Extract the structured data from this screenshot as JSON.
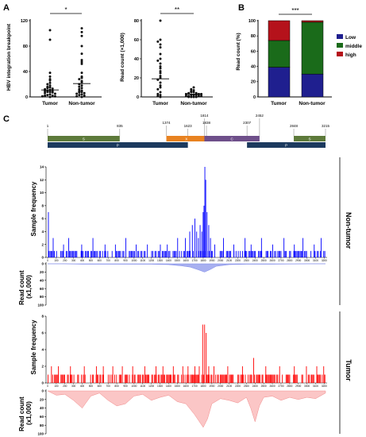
{
  "panels": {
    "a": "A",
    "b": "B",
    "c": "C"
  },
  "chart_data": [
    {
      "type": "scatter",
      "panel": "A",
      "ylabel": "HBV integration breakpoint",
      "ylim": [
        0,
        120
      ],
      "yticks": [
        "0",
        "40",
        "80",
        "120"
      ],
      "categories": [
        "Tumor",
        "Non-tumor"
      ],
      "significance": "*",
      "means": [
        11,
        21
      ],
      "groups": [
        {
          "name": "Tumor",
          "values": [
            105,
            90,
            38,
            32,
            28,
            26,
            22,
            20,
            18,
            16,
            15,
            14,
            13,
            12,
            11,
            10,
            9,
            9,
            8,
            8,
            7,
            6,
            5,
            4,
            3,
            2,
            2,
            1,
            1,
            0
          ]
        },
        {
          "name": "Non-tumor",
          "values": [
            108,
            102,
            96,
            80,
            68,
            58,
            55,
            52,
            38,
            32,
            30,
            28,
            25,
            23,
            20,
            18,
            16,
            14,
            12,
            10,
            9,
            8,
            7,
            6,
            5,
            4,
            3,
            2,
            1,
            0
          ]
        }
      ]
    },
    {
      "type": "scatter",
      "panel": "A",
      "ylabel": "Read count (×1,000)",
      "ylim": [
        0,
        80
      ],
      "yticks": [
        "0",
        "20",
        "40",
        "60",
        "80"
      ],
      "categories": [
        "Tumor",
        "Non-tumor"
      ],
      "significance": "**",
      "means": [
        19,
        3
      ],
      "groups": [
        {
          "name": "Tumor",
          "values": [
            80,
            60,
            58,
            55,
            52,
            45,
            40,
            38,
            35,
            32,
            30,
            27,
            25,
            22,
            20,
            18,
            15,
            12,
            10,
            8,
            5,
            3,
            2,
            1,
            0
          ]
        },
        {
          "name": "Non-tumor",
          "values": [
            10,
            8,
            7,
            6,
            5,
            5,
            4,
            4,
            3,
            3,
            3,
            2,
            2,
            2,
            1,
            1,
            1,
            1,
            0,
            0,
            0,
            0
          ]
        }
      ]
    },
    {
      "type": "bar",
      "panel": "B",
      "stacked": true,
      "ylabel": "Read count (%)",
      "ylim": [
        0,
        100
      ],
      "yticks": [
        "0",
        "20",
        "40",
        "60",
        "80",
        "100"
      ],
      "categories": [
        "Tumor",
        "Non-tumor"
      ],
      "significance": "***",
      "legend_position": "right",
      "series": [
        {
          "name": "Low",
          "color": "#1f1f8f",
          "values": [
            39,
            30
          ]
        },
        {
          "name": "middle",
          "color": "#1a6b1a",
          "values": [
            35,
            68
          ]
        },
        {
          "name": "high",
          "color": "#b5121b",
          "values": [
            26,
            2
          ]
        }
      ]
    },
    {
      "type": "genome-map",
      "panel": "C",
      "positions": [
        "1",
        "835",
        "1374",
        "1623",
        "1814",
        "1838",
        "2307",
        "2452",
        "2848",
        "3215"
      ],
      "genes": [
        {
          "label": "S",
          "start": 1,
          "end": 835,
          "color": "#5d7a3a",
          "row": 0
        },
        {
          "label": "X",
          "start": 1374,
          "end": 1838,
          "color": "#e88220",
          "row": 0
        },
        {
          "label": "C",
          "start": 1814,
          "end": 2452,
          "color": "#6e4f8a",
          "row": 0
        },
        {
          "label": "S",
          "start": 2848,
          "end": 3215,
          "color": "#5d7a3a",
          "row": 0
        },
        {
          "label": "P",
          "start": 1,
          "end": 1623,
          "color": "#1c3a5e",
          "row": 1
        },
        {
          "label": "P",
          "start": 2307,
          "end": 3215,
          "color": "#1c3a5e",
          "row": 1
        }
      ]
    },
    {
      "type": "bar",
      "panel": "C",
      "group": "Non-tumor",
      "ylabel": "Sample frequency",
      "ylim": [
        0,
        14
      ],
      "yticks": [
        "0",
        "2",
        "4",
        "6",
        "8",
        "10",
        "12",
        "14"
      ],
      "xlim": [
        0,
        3215
      ],
      "xticks": [
        "0",
        "100",
        "200",
        "300",
        "400",
        "500",
        "600",
        "700",
        "800",
        "900",
        "1000",
        "1100",
        "1200",
        "1300",
        "1400",
        "1500",
        "1600",
        "1700",
        "1800",
        "1900",
        "2000",
        "2100",
        "2200",
        "2300",
        "2400",
        "2500",
        "2600",
        "2700",
        "2800",
        "2900",
        "3000",
        "3100",
        "3200"
      ],
      "color": "#0000ff",
      "baseline": 1,
      "peaks": [
        [
          5,
          7
        ],
        [
          60,
          3
        ],
        [
          180,
          2
        ],
        [
          240,
          3
        ],
        [
          390,
          2
        ],
        [
          520,
          3
        ],
        [
          660,
          2
        ],
        [
          780,
          2
        ],
        [
          900,
          3
        ],
        [
          1020,
          2
        ],
        [
          1150,
          2
        ],
        [
          1300,
          2
        ],
        [
          1380,
          2
        ],
        [
          1500,
          3
        ],
        [
          1590,
          3
        ],
        [
          1640,
          4
        ],
        [
          1670,
          5
        ],
        [
          1700,
          6
        ],
        [
          1720,
          4
        ],
        [
          1740,
          3
        ],
        [
          1760,
          5
        ],
        [
          1780,
          4
        ],
        [
          1795,
          7
        ],
        [
          1805,
          8
        ],
        [
          1815,
          14
        ],
        [
          1825,
          12
        ],
        [
          1840,
          7
        ],
        [
          1860,
          5
        ],
        [
          1880,
          3
        ],
        [
          1930,
          2
        ],
        [
          2030,
          3
        ],
        [
          2150,
          2
        ],
        [
          2280,
          3
        ],
        [
          2350,
          2
        ],
        [
          2470,
          3
        ],
        [
          2600,
          2
        ],
        [
          2730,
          3
        ],
        [
          2850,
          2
        ],
        [
          2950,
          3
        ],
        [
          3080,
          2
        ],
        [
          3160,
          3
        ]
      ]
    },
    {
      "type": "area",
      "panel": "C",
      "group": "Non-tumor",
      "ylabel": "Read count (x1,000)",
      "ylim": [
        0,
        100
      ],
      "inverted": true,
      "yticks": [
        "0",
        "20",
        "40",
        "60",
        "80",
        "100"
      ],
      "color": "#7a86e8",
      "x": [
        0,
        200,
        400,
        600,
        800,
        1000,
        1200,
        1400,
        1550,
        1650,
        1750,
        1815,
        1880,
        1950,
        2100,
        2300,
        2600,
        3000,
        3215
      ],
      "y": [
        0,
        0,
        1,
        1,
        1,
        1,
        1,
        2,
        5,
        8,
        15,
        20,
        14,
        6,
        2,
        1,
        1,
        0,
        0
      ]
    },
    {
      "type": "bar",
      "panel": "C",
      "group": "Tumor",
      "ylabel": "Sample frequency",
      "ylim": [
        0,
        8
      ],
      "yticks": [
        "0",
        "2",
        "4",
        "6",
        "8"
      ],
      "xlim": [
        0,
        3215
      ],
      "xticks": [
        "0",
        "100",
        "200",
        "300",
        "400",
        "500",
        "600",
        "700",
        "800",
        "900",
        "1000",
        "1100",
        "1200",
        "1300",
        "1400",
        "1500",
        "1600",
        "1700",
        "1800",
        "1900",
        "2000",
        "2100",
        "2200",
        "2300",
        "2400",
        "2500",
        "2600",
        "2700",
        "2800",
        "2900",
        "3000",
        "3100",
        "3200"
      ],
      "color": "#ff0000",
      "baseline": 1,
      "peaks": [
        [
          40,
          2
        ],
        [
          120,
          2
        ],
        [
          260,
          2
        ],
        [
          420,
          2
        ],
        [
          560,
          2
        ],
        [
          640,
          2
        ],
        [
          750,
          2
        ],
        [
          860,
          2
        ],
        [
          980,
          2
        ],
        [
          1120,
          2
        ],
        [
          1250,
          2
        ],
        [
          1330,
          2
        ],
        [
          1450,
          2
        ],
        [
          1560,
          2
        ],
        [
          1620,
          2
        ],
        [
          1700,
          2
        ],
        [
          1750,
          2
        ],
        [
          1790,
          7
        ],
        [
          1812,
          7
        ],
        [
          1830,
          6
        ],
        [
          1860,
          2
        ],
        [
          1920,
          2
        ],
        [
          2080,
          2
        ],
        [
          2250,
          2
        ],
        [
          2380,
          3
        ],
        [
          2520,
          2
        ],
        [
          2680,
          2
        ],
        [
          2850,
          2
        ],
        [
          2990,
          2
        ],
        [
          3110,
          2
        ],
        [
          3190,
          2
        ]
      ]
    },
    {
      "type": "area",
      "panel": "C",
      "group": "Tumor",
      "ylabel": "Read count (x1,000)",
      "ylim": [
        0,
        100
      ],
      "inverted": true,
      "yticks": [
        "0",
        "20",
        "40",
        "60",
        "80",
        "100"
      ],
      "color": "#f08a8a",
      "x": [
        0,
        100,
        200,
        300,
        400,
        500,
        600,
        700,
        800,
        900,
        1000,
        1100,
        1200,
        1300,
        1400,
        1500,
        1600,
        1700,
        1750,
        1800,
        1850,
        1900,
        2000,
        2100,
        2200,
        2300,
        2350,
        2400,
        2450,
        2500,
        2600,
        2700,
        2800,
        2900,
        3000,
        3100,
        3215
      ],
      "y": [
        0,
        10,
        8,
        22,
        40,
        12,
        5,
        22,
        35,
        30,
        12,
        8,
        22,
        15,
        10,
        25,
        30,
        55,
        70,
        85,
        65,
        30,
        18,
        22,
        28,
        15,
        40,
        72,
        35,
        15,
        12,
        22,
        15,
        20,
        15,
        18,
        5
      ]
    }
  ]
}
